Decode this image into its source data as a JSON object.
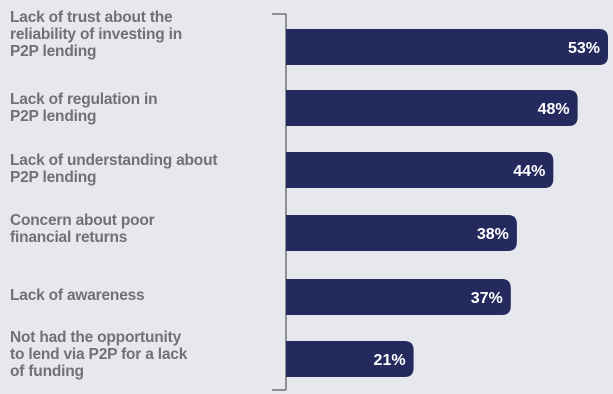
{
  "chart_data": {
    "type": "bar",
    "orientation": "horizontal",
    "categories": [
      "Lack of trust about the reliability of investing in P2P lending",
      "Lack of regulation in P2P lending",
      "Lack of understanding about P2P lending",
      "Concern about poor financial returns",
      "Lack of awareness",
      "Not had the opportunity to lend via P2P for a lack of funding"
    ],
    "category_lines": [
      [
        "Lack of trust about the",
        "reliability of investing in",
        "P2P lending"
      ],
      [
        "Lack of regulation in",
        "P2P lending"
      ],
      [
        "Lack of understanding about",
        "P2P lending"
      ],
      [
        "Concern about poor",
        "financial returns"
      ],
      [
        "Lack of awareness"
      ],
      [
        "Not had the opportunity",
        "to lend via P2P for a lack",
        "of funding"
      ]
    ],
    "values": [
      53,
      48,
      44,
      38,
      37,
      21
    ],
    "value_labels": [
      "53%",
      "48%",
      "44%",
      "38%",
      "37%",
      "21%"
    ],
    "xlim": [
      0,
      53
    ],
    "title": "",
    "xlabel": "",
    "ylabel": "",
    "grid": false,
    "colors": {
      "bar": "#242a5e",
      "label": "#707174",
      "background": "#e6e8ed",
      "axis": "#555555"
    }
  }
}
